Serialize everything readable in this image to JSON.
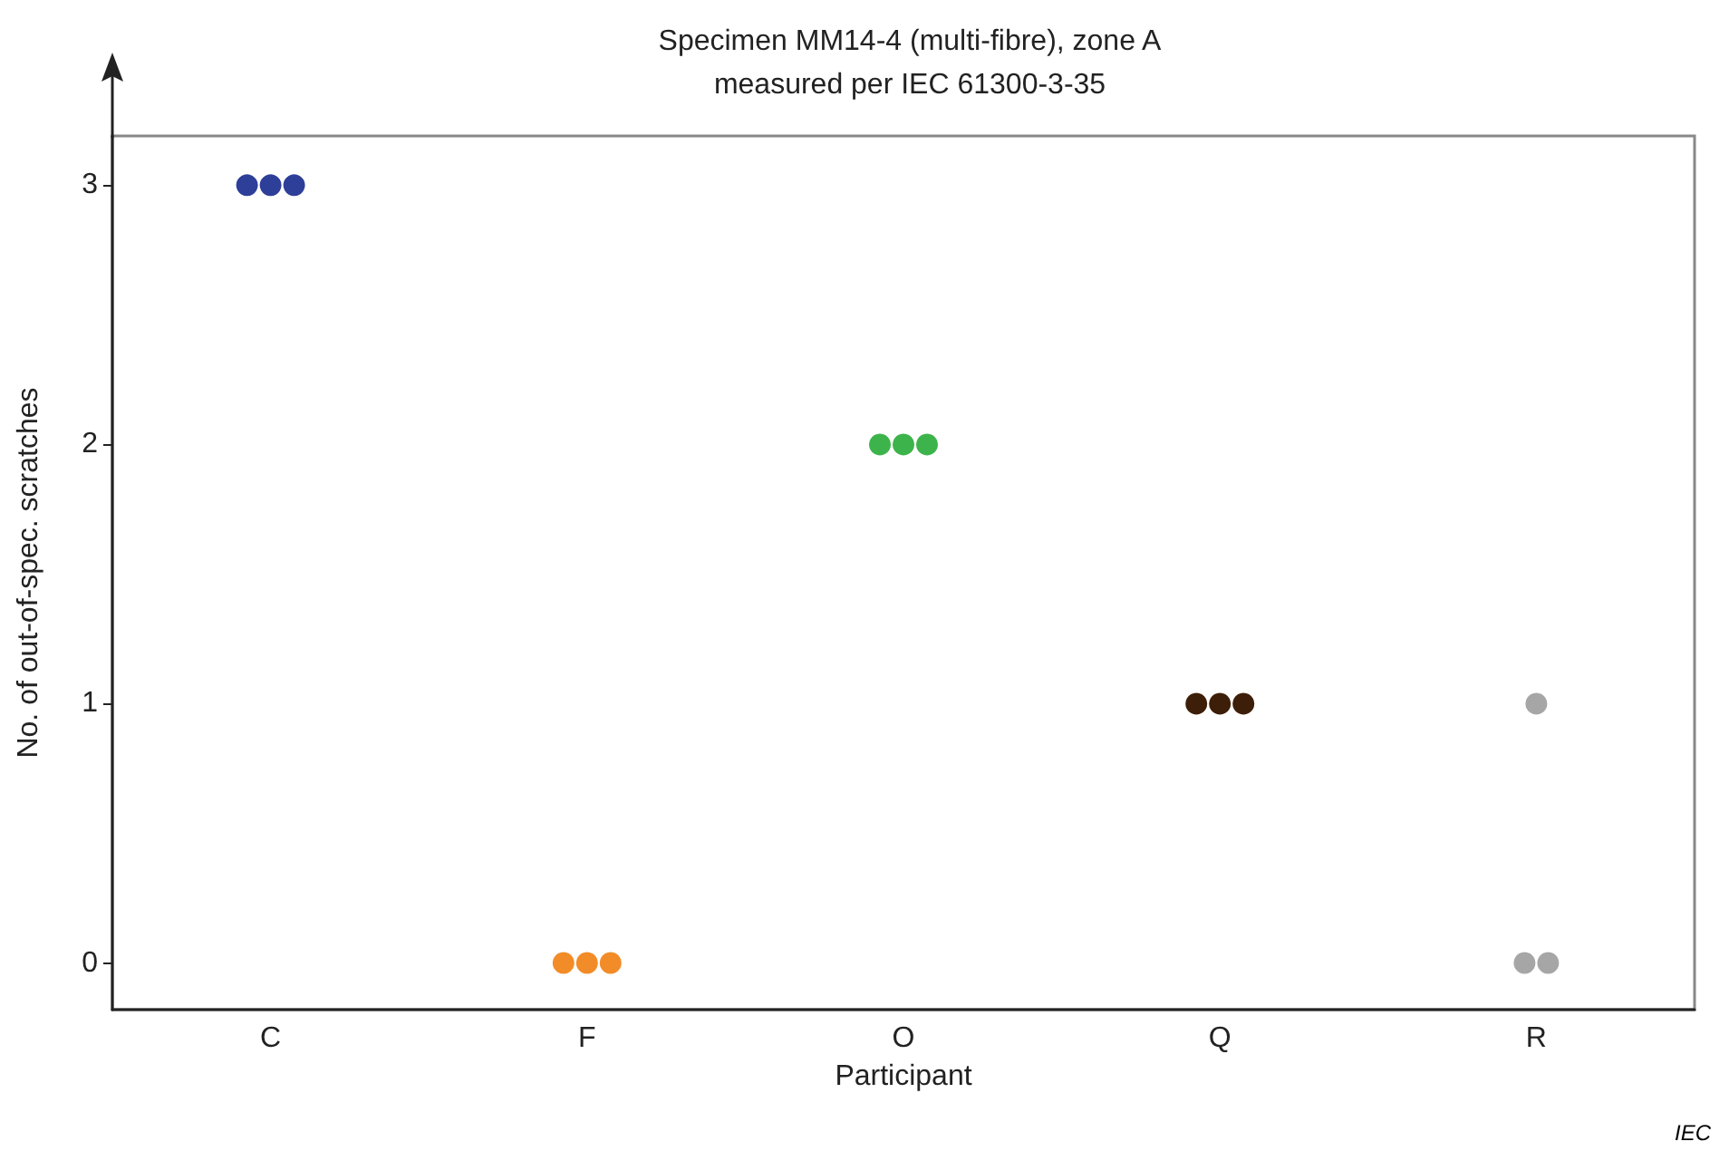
{
  "chart_data": {
    "type": "scatter",
    "title": "Specimen MM14-4 (multi-fibre), zone A\nmeasured per IEC 61300-3-35",
    "xlabel": "Participant",
    "ylabel": "No. of out-of-spec. scratches",
    "categories": [
      "C",
      "F",
      "O",
      "Q",
      "R"
    ],
    "series": [
      {
        "color": "#2e3f99",
        "x": [
          "C",
          "C",
          "C"
        ],
        "values": [
          3,
          3,
          3
        ]
      },
      {
        "color": "#f28c28",
        "x": [
          "F",
          "F",
          "F"
        ],
        "values": [
          0,
          0,
          0
        ]
      },
      {
        "color": "#3cb44b",
        "x": [
          "O",
          "O",
          "O"
        ],
        "values": [
          2,
          2,
          2
        ]
      },
      {
        "color": "#3d1e08",
        "x": [
          "Q",
          "Q",
          "Q"
        ],
        "values": [
          1,
          1,
          1
        ]
      },
      {
        "color": "#a6a6a6",
        "x": [
          "R",
          "R",
          "R"
        ],
        "values": [
          1,
          0,
          0
        ]
      }
    ],
    "ylim": [
      -0.18,
      3.19
    ],
    "yticks": [
      0,
      1,
      2,
      3
    ],
    "grid": false,
    "marker": "circle",
    "annotations": [
      "IEC"
    ]
  }
}
